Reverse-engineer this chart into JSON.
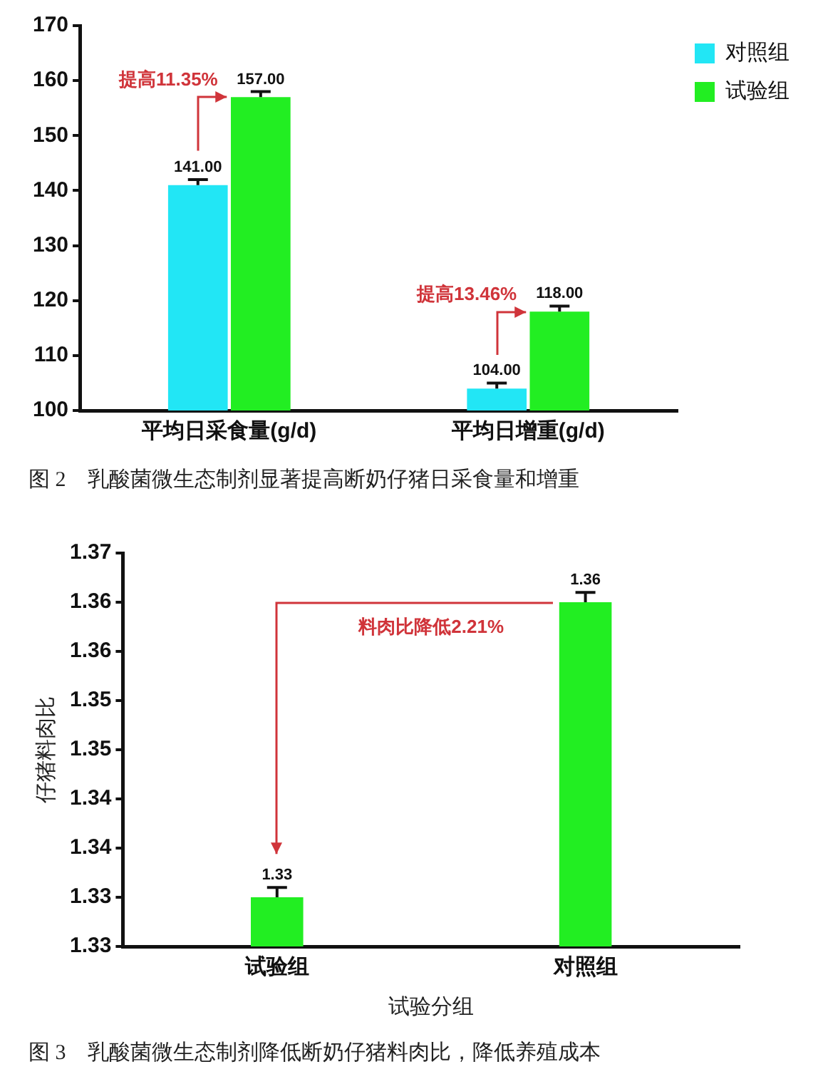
{
  "chart_data": [
    {
      "type": "bar",
      "categories": [
        "平均日采食量(g/d)",
        "平均日增重(g/d)"
      ],
      "series": [
        {
          "name": "对照组",
          "color": "#22e6f5",
          "values": [
            141,
            104
          ],
          "errors": [
            1,
            1
          ],
          "value_labels": [
            "141.00",
            "104.00"
          ]
        },
        {
          "name": "试验组",
          "color": "#22ee22",
          "values": [
            157,
            118
          ],
          "errors": [
            1,
            1
          ],
          "value_labels": [
            "157.00",
            "118.00"
          ]
        }
      ],
      "ylim": [
        100,
        170
      ],
      "yticks": [
        100,
        110,
        120,
        130,
        140,
        150,
        160,
        170
      ],
      "legend": "top right",
      "title": "图 2　乳酸菌微生态制剂显著提高断奶仔猪日采食量和增重",
      "annotations": [
        "提高11.35%",
        "提高13.46%"
      ]
    },
    {
      "type": "bar",
      "categories": [
        "试验组",
        "对照组"
      ],
      "values": [
        1.33,
        1.36
      ],
      "color": "#22ee22",
      "errors": [
        0.001,
        0.001
      ],
      "data_labels": true,
      "xlabel": "试验分组",
      "ylabel": "仔猪料肉比",
      "ylim": [
        1.325,
        1.365
      ],
      "yticks": [
        {
          "value": 1.325,
          "label": "1.33"
        },
        {
          "value": 1.33,
          "label": "1.33"
        },
        {
          "value": 1.335,
          "label": "1.34"
        },
        {
          "value": 1.34,
          "label": "1.34"
        },
        {
          "value": 1.345,
          "label": "1.35"
        },
        {
          "value": 1.35,
          "label": "1.35"
        },
        {
          "value": 1.355,
          "label": "1.36"
        },
        {
          "value": 1.36,
          "label": "1.36"
        },
        {
          "value": 1.365,
          "label": "1.37"
        }
      ],
      "title": "图 3　乳酸菌微生态制剂降低断奶仔猪料肉比，降低养殖成本",
      "annotations": [
        "料肉比降低2.21%"
      ]
    }
  ]
}
